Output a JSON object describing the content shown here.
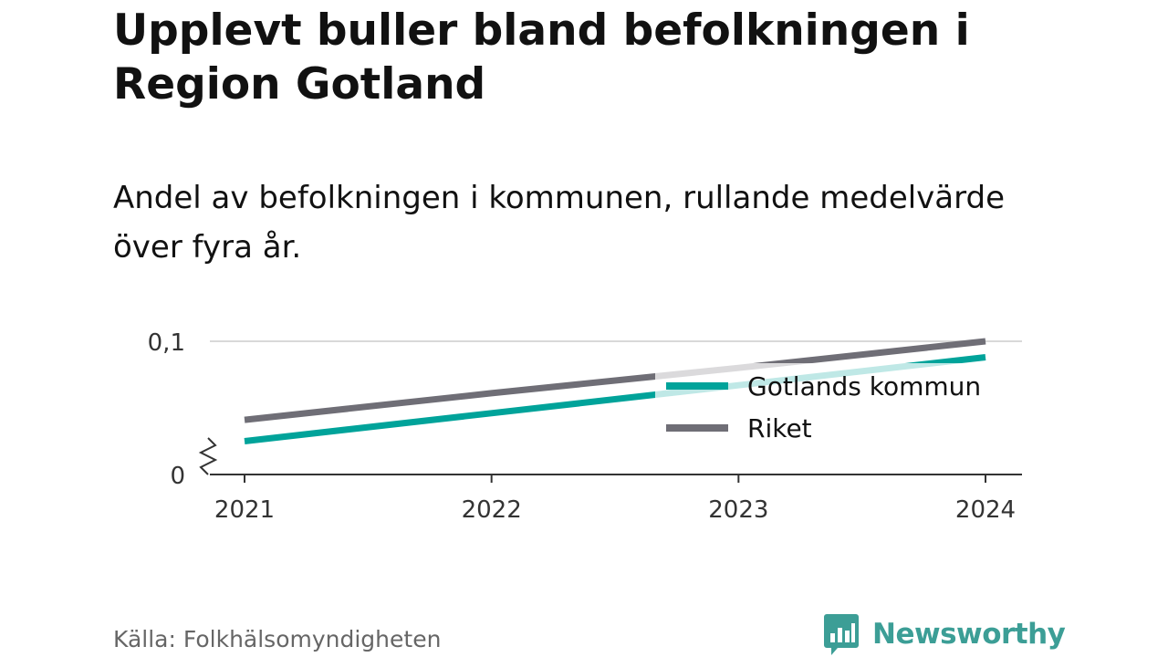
{
  "title": "Upplevt buller bland befolkningen i Region Gotland",
  "subtitle": "Andel av befolkningen i kommunen, rullande medelvärde över fyra år.",
  "source": "Källa: Folkhälsomyndigheten",
  "brand": {
    "name": "Newsworthy",
    "icon": "bar-chart-speech-bubble-icon",
    "color": "#3c9e96"
  },
  "chart_data": {
    "type": "line",
    "title": "Upplevt buller bland befolkningen i Region Gotland",
    "subtitle": "Andel av befolkningen i kommunen, rullande medelvärde över fyra år.",
    "x": [
      2021,
      2022,
      2023,
      2024
    ],
    "x_tick_labels": [
      "2021",
      "2022",
      "2023",
      "2024"
    ],
    "y_tick_labels": [
      "0",
      "0,1"
    ],
    "y_ticks": [
      0,
      0.1
    ],
    "ylim": [
      0,
      0.1
    ],
    "y_axis_break": true,
    "grid": true,
    "legend_position": "bottom-right-inside",
    "series": [
      {
        "name": "Gotlands kommun",
        "color": "#00a39a",
        "values": [
          0.025,
          0.046,
          0.067,
          0.088
        ]
      },
      {
        "name": "Riket",
        "color": "#6f6e76",
        "values": [
          0.041,
          0.061,
          0.08,
          0.1
        ]
      }
    ]
  }
}
